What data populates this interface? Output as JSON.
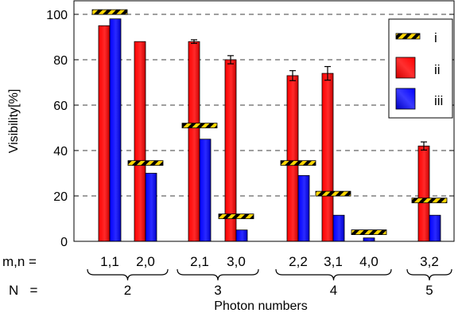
{
  "chart_data": {
    "type": "bar",
    "ylabel": "Visibility[%]",
    "xlabel": "Photon numbers",
    "ylim": [
      0,
      105
    ],
    "yticks": [
      0,
      20,
      40,
      60,
      80,
      100
    ],
    "grid": "horizontal dashed",
    "legend_position": "top-right",
    "row_labels": {
      "mn": "m,n =",
      "N": "N   ="
    },
    "categories": [
      "1,1",
      "2,0",
      "2,1",
      "3,0",
      "2,2",
      "3,1",
      "4,0",
      "3,2"
    ],
    "groups": [
      {
        "N": "2",
        "members": [
          0,
          1
        ]
      },
      {
        "N": "3",
        "members": [
          2,
          3
        ]
      },
      {
        "N": "4",
        "members": [
          4,
          5,
          6
        ]
      },
      {
        "N": "5",
        "members": [
          7
        ]
      }
    ],
    "series": [
      {
        "name": "i",
        "style": "hatched-marker",
        "colors": [
          "#ffd700",
          "#000000"
        ],
        "values": [
          101,
          34.5,
          51,
          11,
          34.5,
          21,
          4,
          18
        ]
      },
      {
        "name": "ii",
        "color": "#ff0000",
        "values": [
          95,
          88,
          88,
          80,
          73,
          74,
          null,
          42
        ],
        "errors": [
          null,
          null,
          0.8,
          1.8,
          2.2,
          3,
          null,
          1.8
        ]
      },
      {
        "name": "iii",
        "color": "#0000ff",
        "values": [
          98,
          30,
          45,
          5,
          29,
          11.5,
          1.5,
          11.5
        ],
        "errors": [
          null,
          null,
          null,
          null,
          null,
          null,
          null,
          null
        ]
      }
    ]
  }
}
